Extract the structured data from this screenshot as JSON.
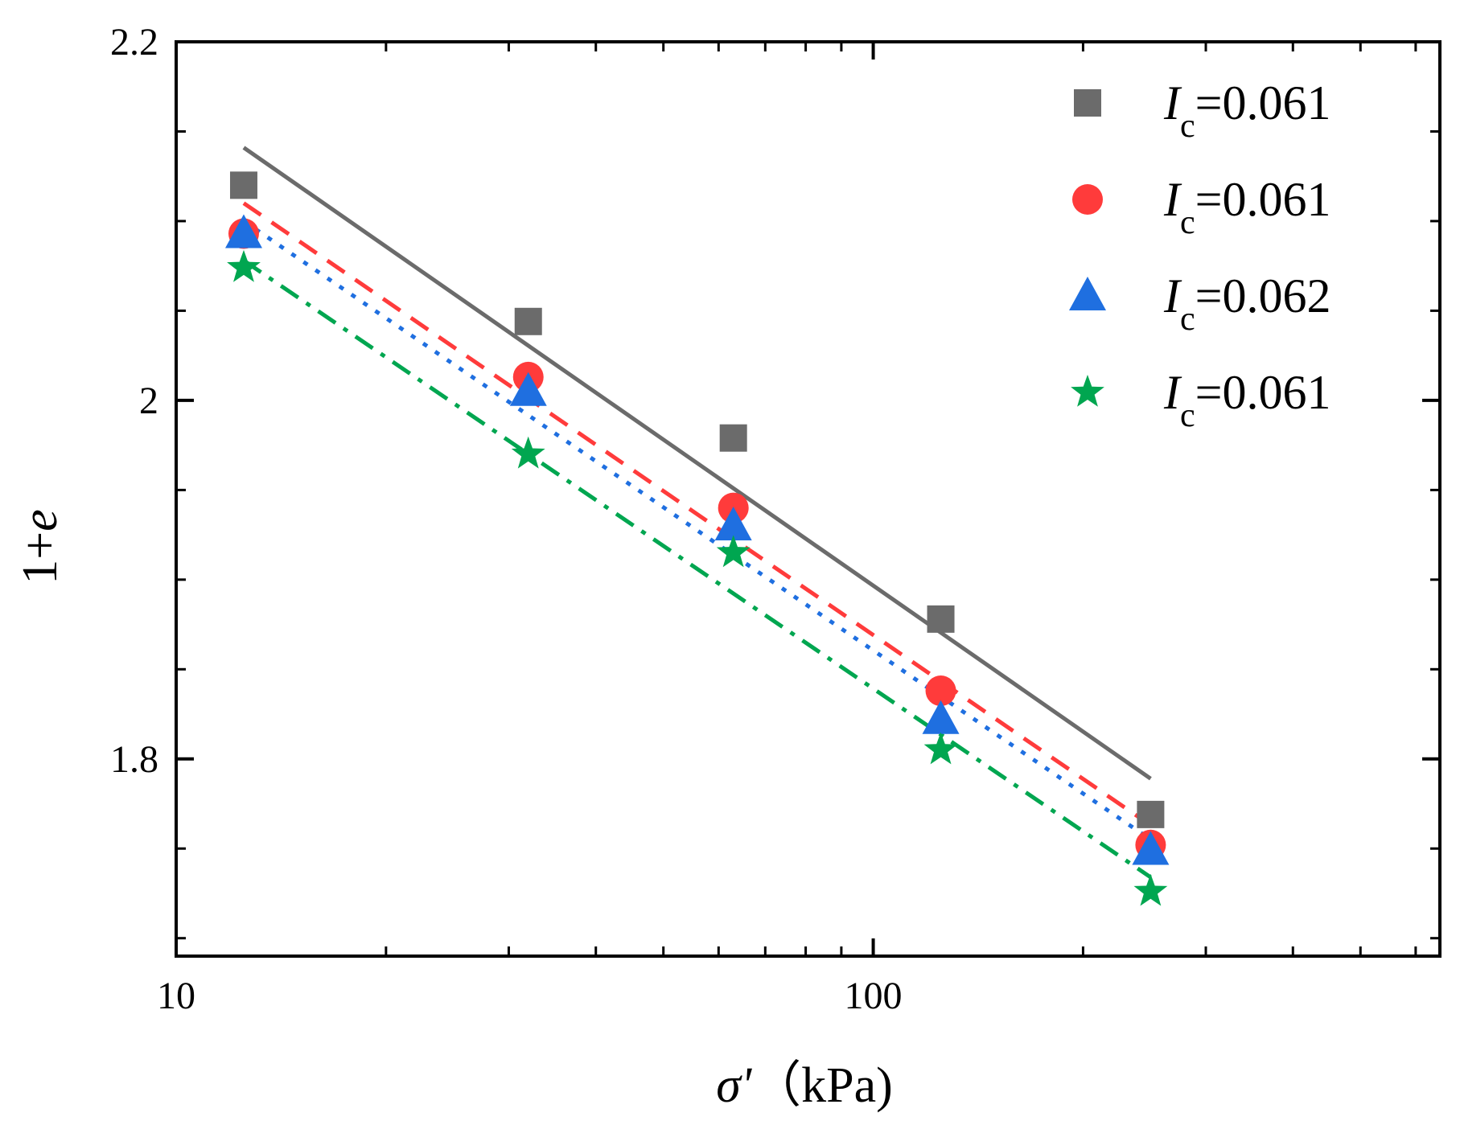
{
  "chart_data": {
    "type": "scatter",
    "title": "",
    "xlabel": {
      "symbol": "σ'",
      "unit": "（kPa)"
    },
    "ylabel": {
      "prefix": "1+",
      "var": "e"
    },
    "x_scale": "log",
    "xlim": [
      10,
      650
    ],
    "ylim": [
      1.69,
      2.2
    ],
    "x_ticks": [
      10,
      100
    ],
    "x_tick_labels": [
      "10",
      "100"
    ],
    "y_ticks": [
      1.8,
      2.0,
      2.2
    ],
    "y_tick_labels": [
      "1.8",
      "2",
      "2.2"
    ],
    "grid": false,
    "legend_position": "top-right",
    "series": [
      {
        "name": "Ic=0.061",
        "legend_symbol": "I",
        "legend_sub": "c",
        "legend_value": "=0.061",
        "marker": "square",
        "color": "#6b6b6b",
        "line_style": "solid",
        "x": [
          12.5,
          32,
          63,
          125,
          250
        ],
        "y": [
          2.12,
          2.044,
          1.979,
          1.878,
          1.769
        ],
        "fit": {
          "x": [
            12.5,
            250
          ],
          "y": [
            2.141,
            1.789
          ]
        }
      },
      {
        "name": "Ic=0.061",
        "legend_symbol": "I",
        "legend_sub": "c",
        "legend_value": "=0.061",
        "marker": "circle",
        "color": "#ff3b3b",
        "line_style": "dash",
        "x": [
          12.5,
          32,
          63,
          125,
          250
        ],
        "y": [
          2.093,
          2.013,
          1.94,
          1.838,
          1.752
        ],
        "fit": {
          "x": [
            12.5,
            250
          ],
          "y": [
            2.11,
            1.763
          ]
        }
      },
      {
        "name": "Ic=0.062",
        "legend_symbol": "I",
        "legend_sub": "c",
        "legend_value": "=0.062",
        "marker": "triangle",
        "color": "#1f6fe0",
        "line_style": "dot",
        "x": [
          12.5,
          32,
          63,
          125,
          250
        ],
        "y": [
          2.093,
          2.005,
          1.93,
          1.822,
          1.749
        ],
        "fit": {
          "x": [
            12.5,
            250
          ],
          "y": [
            2.1,
            1.755
          ]
        }
      },
      {
        "name": "Ic=0.061",
        "legend_symbol": "I",
        "legend_sub": "c",
        "legend_value": "=0.061",
        "marker": "star",
        "color": "#00a650",
        "line_style": "dashdot",
        "x": [
          12.5,
          32,
          63,
          125,
          250
        ],
        "y": [
          2.074,
          1.97,
          1.915,
          1.805,
          1.726
        ],
        "fit": {
          "x": [
            12.5,
            250
          ],
          "y": [
            2.078,
            1.734
          ]
        }
      }
    ]
  }
}
